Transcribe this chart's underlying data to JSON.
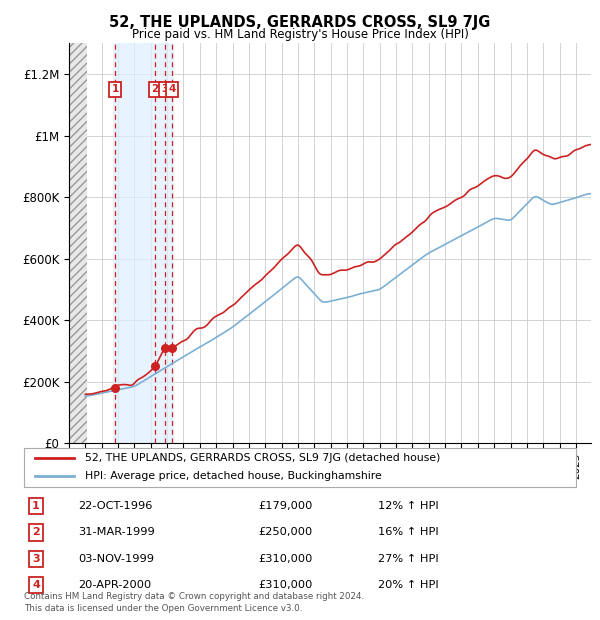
{
  "title": "52, THE UPLANDS, GERRARDS CROSS, SL9 7JG",
  "subtitle": "Price paid vs. HM Land Registry's House Price Index (HPI)",
  "ylim": [
    0,
    1300000
  ],
  "yticks": [
    0,
    200000,
    400000,
    600000,
    800000,
    1000000,
    1200000
  ],
  "ytick_labels": [
    "£0",
    "£200K",
    "£400K",
    "£600K",
    "£800K",
    "£1M",
    "£1.2M"
  ],
  "xlim_start": 1994.0,
  "xlim_end": 2025.92,
  "hpi_color": "#7bafd4",
  "price_color": "#cc2222",
  "hatch_end": 1995.08,
  "shaded_start": 1996.7,
  "shaded_end": 2000.42,
  "purchases": [
    {
      "date_num": 1996.81,
      "price": 179000,
      "label": "1"
    },
    {
      "date_num": 1999.25,
      "price": 250000,
      "label": "2"
    },
    {
      "date_num": 1999.84,
      "price": 310000,
      "label": "3"
    },
    {
      "date_num": 2000.3,
      "price": 310000,
      "label": "4"
    }
  ],
  "legend_line1": "52, THE UPLANDS, GERRARDS CROSS, SL9 7JG (detached house)",
  "legend_line2": "HPI: Average price, detached house, Buckinghamshire",
  "table_rows": [
    {
      "num": "1",
      "date": "22-OCT-1996",
      "price": "£179,000",
      "hpi": "12% ↑ HPI"
    },
    {
      "num": "2",
      "date": "31-MAR-1999",
      "price": "£250,000",
      "hpi": "16% ↑ HPI"
    },
    {
      "num": "3",
      "date": "03-NOV-1999",
      "price": "£310,000",
      "hpi": "27% ↑ HPI"
    },
    {
      "num": "4",
      "date": "20-APR-2000",
      "price": "£310,000",
      "hpi": "20% ↑ HPI"
    }
  ],
  "footer": "Contains HM Land Registry data © Crown copyright and database right 2024.\nThis data is licensed under the Open Government Licence v3.0."
}
